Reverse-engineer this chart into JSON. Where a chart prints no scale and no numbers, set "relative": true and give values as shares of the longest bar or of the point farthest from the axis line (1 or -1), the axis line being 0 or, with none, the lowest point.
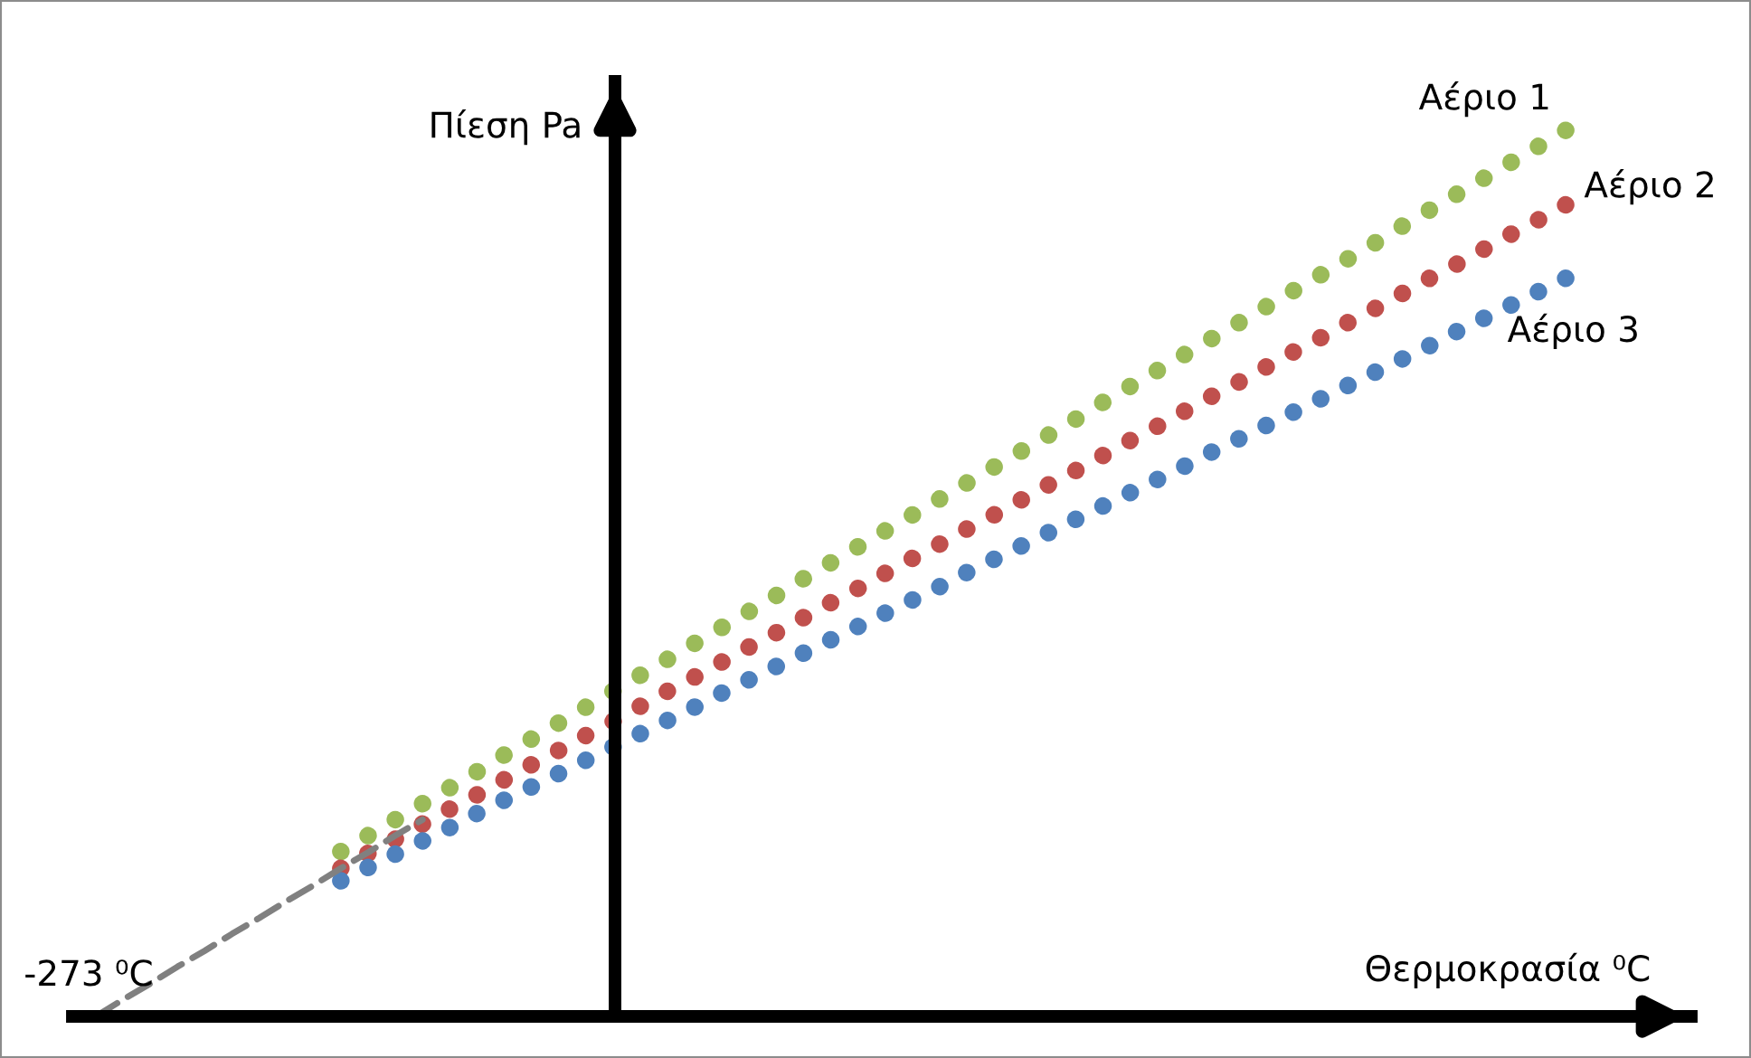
{
  "chart_data": {
    "type": "line",
    "relative": true,
    "xlabel": "Θερμοκρασία ⁰C",
    "ylabel": "Πίεση Pa",
    "annotations": [
      "-273 ⁰C"
    ],
    "categories": [
      null,
      null,
      null,
      null,
      null,
      null,
      null,
      null,
      null,
      null,
      null,
      null,
      null,
      null,
      null,
      null,
      null,
      null,
      null,
      null,
      null,
      null,
      null,
      null,
      null,
      null,
      null,
      null,
      null,
      null,
      null,
      null,
      null,
      null,
      null,
      null,
      null,
      null,
      null,
      null,
      null,
      null,
      null,
      null,
      null,
      null,
      null,
      null,
      null,
      null,
      null,
      null,
      null,
      null,
      null
    ],
    "series": [
      {
        "name": "Αέριο 1",
        "color": "#9bbb59",
        "line_style": "dotted",
        "values": [
          null,
          null,
          null,
          null,
          null,
          null,
          null,
          null,
          null,
          0.186,
          0.204,
          0.222,
          0.24,
          0.258,
          0.276,
          0.295,
          0.313,
          0.331,
          0.349,
          0.367,
          0.385,
          0.403,
          0.421,
          0.439,
          0.457,
          0.475,
          0.494,
          0.512,
          0.53,
          0.548,
          0.566,
          0.584,
          0.602,
          0.62,
          0.638,
          0.656,
          0.674,
          0.693,
          0.711,
          0.729,
          0.747,
          0.765,
          0.783,
          0.801,
          0.819,
          0.837,
          0.855,
          0.873,
          0.892,
          0.91,
          0.928,
          0.946,
          0.964,
          0.982,
          1.0
        ]
      },
      {
        "name": "Αέριο 2",
        "color": "#c0504d",
        "line_style": "dotted",
        "values": [
          null,
          null,
          null,
          null,
          null,
          null,
          null,
          null,
          null,
          0.167,
          0.184,
          0.2,
          0.217,
          0.234,
          0.25,
          0.267,
          0.284,
          0.3,
          0.317,
          0.333,
          0.35,
          0.367,
          0.383,
          0.4,
          0.417,
          0.433,
          0.45,
          0.467,
          0.483,
          0.5,
          0.517,
          0.533,
          0.55,
          0.566,
          0.583,
          0.6,
          0.616,
          0.633,
          0.65,
          0.666,
          0.683,
          0.7,
          0.716,
          0.733,
          0.75,
          0.766,
          0.783,
          0.799,
          0.816,
          0.833,
          0.849,
          0.866,
          0.883,
          0.899,
          0.916
        ]
      },
      {
        "name": "Αέριο 3",
        "color": "#4f81bd",
        "line_style": "dotted",
        "values": [
          null,
          null,
          null,
          null,
          null,
          null,
          null,
          null,
          null,
          0.153,
          0.168,
          0.183,
          0.198,
          0.213,
          0.229,
          0.244,
          0.259,
          0.274,
          0.289,
          0.304,
          0.319,
          0.334,
          0.349,
          0.365,
          0.38,
          0.395,
          0.41,
          0.425,
          0.44,
          0.455,
          0.47,
          0.485,
          0.501,
          0.516,
          0.531,
          0.546,
          0.561,
          0.576,
          0.591,
          0.606,
          0.621,
          0.637,
          0.652,
          0.667,
          0.682,
          0.697,
          0.712,
          0.727,
          0.742,
          0.757,
          0.773,
          0.788,
          0.803,
          0.818,
          0.833
        ]
      },
      {
        "color": "#808080",
        "line_style": "dashed",
        "values": [
          0,
          0.019,
          0.037,
          0.056,
          0.074,
          0.093,
          0.111,
          0.13,
          0.148,
          0.167,
          0.185,
          0.204,
          0.222,
          null,
          null,
          null,
          null,
          null,
          null,
          null,
          null,
          null,
          null,
          null,
          null,
          null,
          null,
          null,
          null,
          null,
          null,
          null,
          null,
          null,
          null,
          null,
          null,
          null,
          null,
          null,
          null,
          null,
          null,
          null,
          null,
          null,
          null,
          null,
          null,
          null,
          null,
          null,
          null,
          null,
          null
        ]
      }
    ]
  }
}
